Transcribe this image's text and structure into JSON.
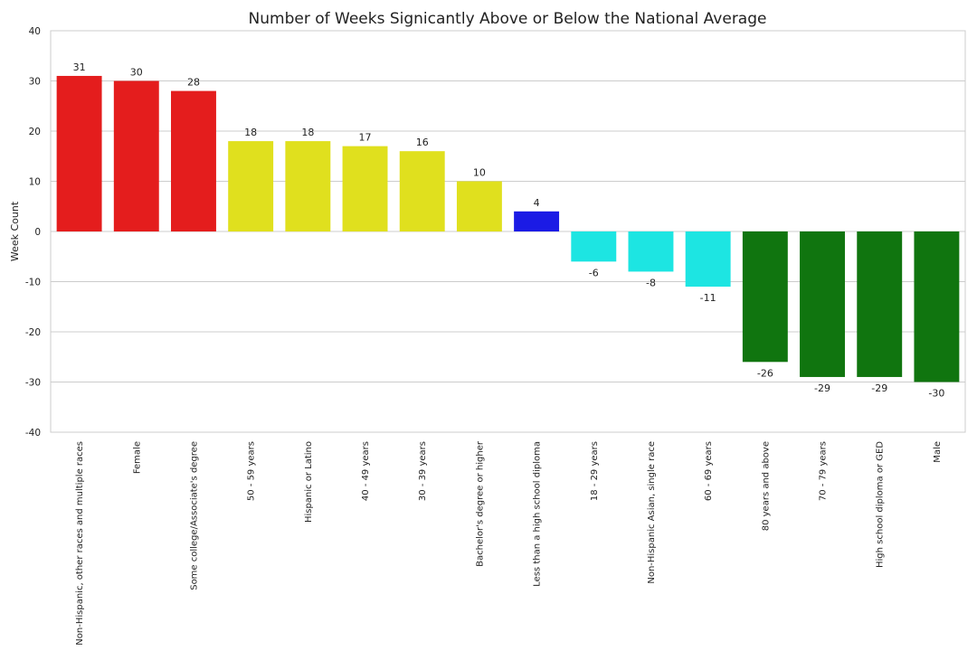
{
  "chart_data": {
    "type": "bar",
    "title": "Number of Weeks Signicantly Above or Below the National Average",
    "xlabel": "",
    "ylabel": "Week Count",
    "ylim": [
      -40,
      40
    ],
    "yticks": [
      40,
      30,
      20,
      10,
      0,
      -10,
      -20,
      -30,
      -40
    ],
    "grid": true,
    "categories": [
      "Non-Hispanic, other races and multiple races",
      "Female",
      "Some college/Associate's degree",
      "50 - 59 years",
      "Hispanic or Latino",
      "40 - 49 years",
      "30 - 39 years",
      "Bachelor's degree or higher",
      "Less than a high school diploma",
      "18 - 29 years",
      "Non-Hispanic Asian, single race",
      "60 - 69 years",
      "80 years and above",
      "70 - 79 years",
      "High school diploma or GED",
      "Male"
    ],
    "values": [
      31,
      30,
      28,
      18,
      18,
      17,
      16,
      10,
      4,
      -6,
      -8,
      -11,
      -26,
      -29,
      -29,
      -30
    ],
    "colors": [
      "#e41d1d",
      "#e41d1d",
      "#e41d1d",
      "#e0e01e",
      "#e0e01e",
      "#e0e01e",
      "#e0e01e",
      "#e0e01e",
      "#1b1be5",
      "#1de5e2",
      "#1de5e2",
      "#1de5e2",
      "#10750f",
      "#10750f",
      "#10750f",
      "#10750f"
    ]
  }
}
